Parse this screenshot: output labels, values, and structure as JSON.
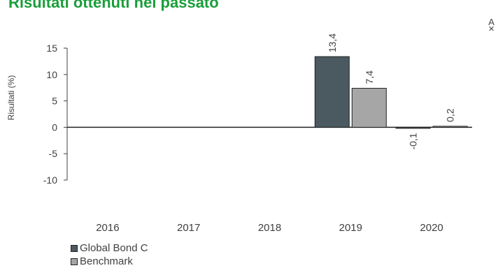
{
  "title": "Risultati ottenuti nel passato",
  "corner_mark": {
    "letter": "A",
    "cross": "✕"
  },
  "colors": {
    "series1": "#4b5a61",
    "series2": "#a6a6a6",
    "title": "#1a9e3a"
  },
  "chart_data": {
    "type": "bar",
    "title": "Risultati ottenuti nel passato",
    "xlabel": "",
    "ylabel": "Risultati (%)",
    "ylim": [
      -10,
      15
    ],
    "yticks": [
      15,
      10,
      5,
      0,
      -5,
      -10
    ],
    "ytick_labels": [
      "15",
      "10",
      "5",
      "0",
      "-5",
      "-10"
    ],
    "categories": [
      "2016",
      "2017",
      "2018",
      "2019",
      "2020"
    ],
    "series": [
      {
        "name": "Global Bond C",
        "values": [
          null,
          null,
          null,
          13.4,
          -0.1
        ],
        "labels": [
          null,
          null,
          null,
          "13,4",
          "-0,1"
        ]
      },
      {
        "name": "Benchmark",
        "values": [
          null,
          null,
          null,
          7.4,
          0.2
        ],
        "labels": [
          null,
          null,
          null,
          "7,4",
          "0,2"
        ]
      }
    ],
    "grid": false,
    "legend_position": "bottom-left"
  }
}
